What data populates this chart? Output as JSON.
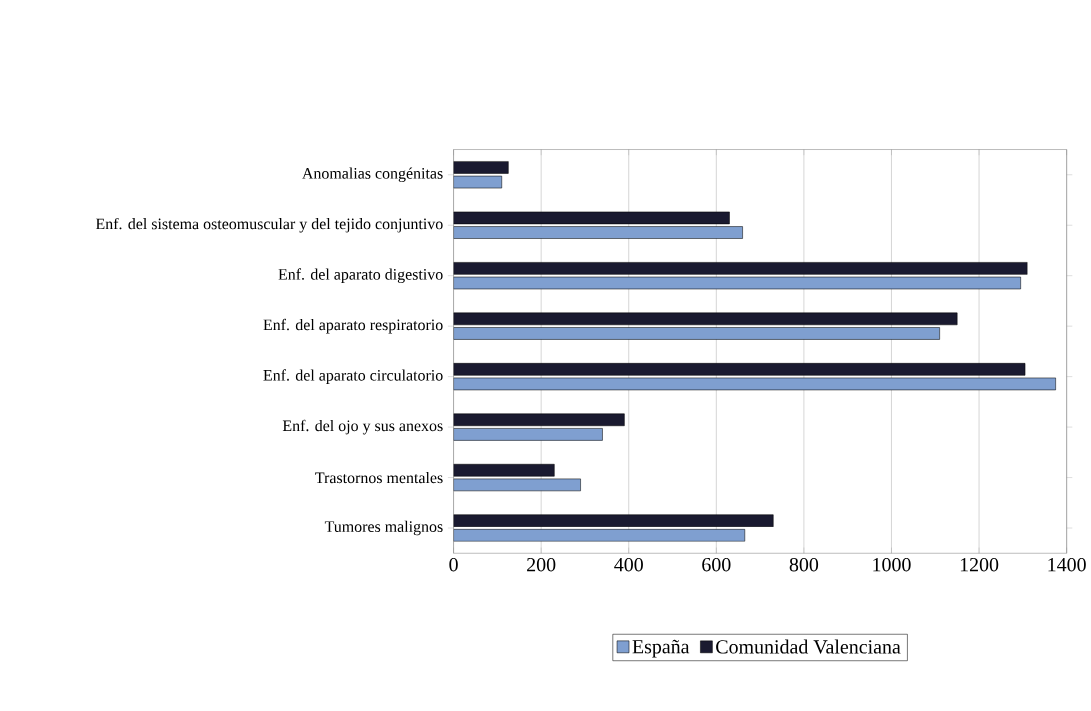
{
  "chart_data": {
    "type": "bar",
    "orientation": "horizontal",
    "categories": [
      "Anomalias congénitas",
      "Enf. del sistema osteomuscular y del tejido conjuntivo",
      "Enf. del aparato digestivo",
      "Enf. del aparato respiratorio",
      "Enf. del aparato circulatorio",
      "Enf. del ojo y sus anexos",
      "Trastornos mentales",
      "Tumores malignos"
    ],
    "series": [
      {
        "name": "España",
        "color": "#7f9fd0",
        "values": [
          110,
          660,
          1295,
          1110,
          1375,
          340,
          290,
          665
        ]
      },
      {
        "name": "Comunidad Valenciana",
        "color": "#1a1a30",
        "values": [
          125,
          630,
          1310,
          1150,
          1305,
          390,
          230,
          730
        ]
      }
    ],
    "xlim": [
      0,
      1400
    ],
    "xticks": [
      0,
      200,
      400,
      600,
      800,
      1000,
      1200,
      1400
    ],
    "grid": "x",
    "legend": "bottom"
  }
}
